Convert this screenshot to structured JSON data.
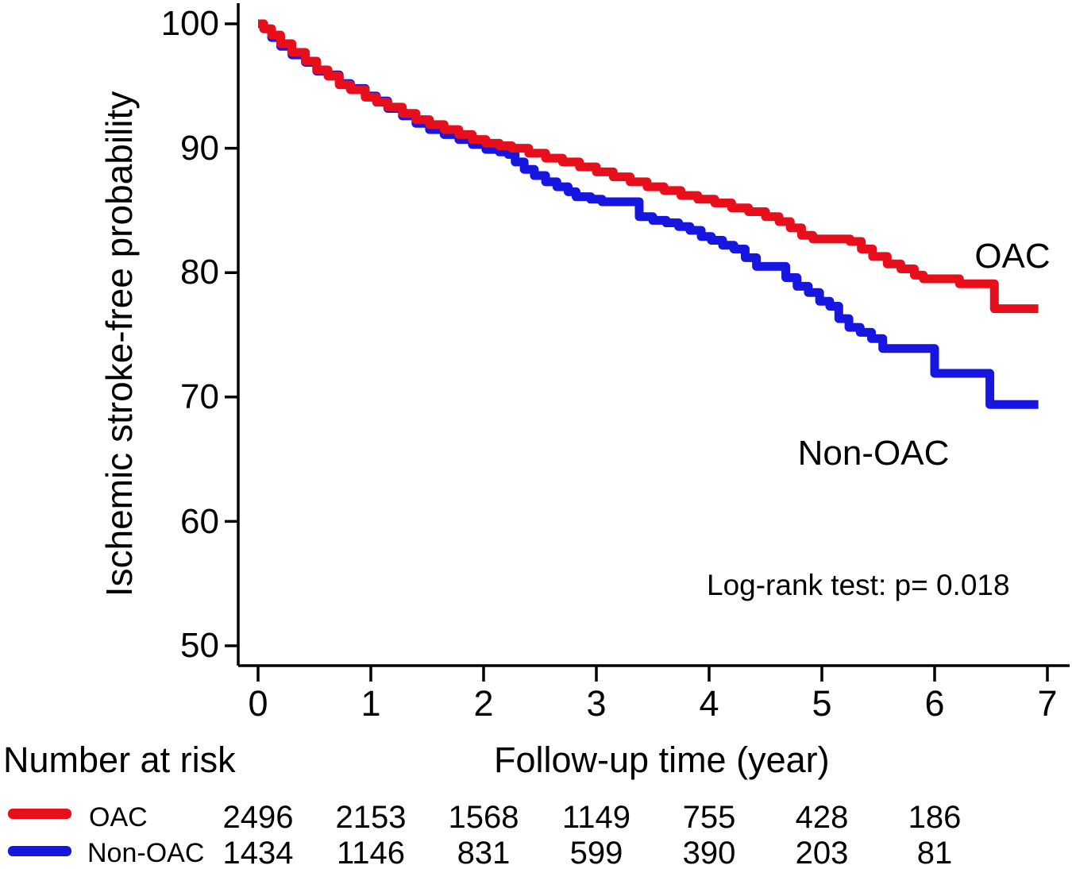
{
  "chart_data": {
    "type": "line",
    "subtype": "kaplan-meier-step",
    "title": "",
    "xlabel": "Follow-up time (year)",
    "ylabel": "Ischemic stroke-free probability",
    "xlim": [
      0,
      7
    ],
    "ylim": [
      50,
      100
    ],
    "grid": false,
    "legend_position": "bottom-left-risk-table",
    "x_ticks": [
      "0",
      "1",
      "2",
      "3",
      "4",
      "5",
      "6",
      "7"
    ],
    "y_ticks": [
      "100",
      "90",
      "80",
      "70",
      "60",
      "50"
    ],
    "annotation": "Log-rank test: p= 0.018",
    "axis_color": "#000000",
    "series": [
      {
        "name": "OAC",
        "color": "#e60f1b",
        "points": [
          [
            0,
            100
          ],
          [
            0.05,
            99.6
          ],
          [
            0.12,
            99.1
          ],
          [
            0.2,
            98.4
          ],
          [
            0.3,
            97.7
          ],
          [
            0.42,
            97.0
          ],
          [
            0.52,
            96.3
          ],
          [
            0.62,
            95.8
          ],
          [
            0.72,
            95.1
          ],
          [
            0.82,
            94.7
          ],
          [
            0.95,
            94.1
          ],
          [
            1.05,
            93.7
          ],
          [
            1.15,
            93.3
          ],
          [
            1.28,
            92.8
          ],
          [
            1.4,
            92.3
          ],
          [
            1.52,
            91.9
          ],
          [
            1.65,
            91.5
          ],
          [
            1.78,
            91.1
          ],
          [
            1.9,
            90.7
          ],
          [
            2.02,
            90.4
          ],
          [
            2.14,
            90.2
          ],
          [
            2.25,
            90.0
          ],
          [
            2.4,
            89.6
          ],
          [
            2.55,
            89.2
          ],
          [
            2.7,
            88.9
          ],
          [
            2.85,
            88.5
          ],
          [
            3.0,
            88.1
          ],
          [
            3.15,
            87.7
          ],
          [
            3.3,
            87.3
          ],
          [
            3.45,
            86.9
          ],
          [
            3.6,
            86.6
          ],
          [
            3.75,
            86.2
          ],
          [
            3.9,
            85.9
          ],
          [
            4.05,
            85.6
          ],
          [
            4.2,
            85.2
          ],
          [
            4.35,
            84.9
          ],
          [
            4.5,
            84.5
          ],
          [
            4.62,
            84.1
          ],
          [
            4.72,
            83.6
          ],
          [
            4.82,
            83.0
          ],
          [
            4.92,
            82.7
          ],
          [
            5.25,
            82.5
          ],
          [
            5.35,
            81.9
          ],
          [
            5.45,
            81.3
          ],
          [
            5.58,
            80.7
          ],
          [
            5.7,
            80.3
          ],
          [
            5.82,
            79.8
          ],
          [
            5.9,
            79.5
          ],
          [
            6.22,
            79.1
          ],
          [
            6.53,
            77.1
          ],
          [
            6.92,
            77.1
          ]
        ]
      },
      {
        "name": "Non-OAC",
        "color": "#1616e0",
        "points": [
          [
            0,
            100
          ],
          [
            0.05,
            99.6
          ],
          [
            0.12,
            98.9
          ],
          [
            0.2,
            98.2
          ],
          [
            0.3,
            97.5
          ],
          [
            0.42,
            96.9
          ],
          [
            0.52,
            96.2
          ],
          [
            0.62,
            95.9
          ],
          [
            0.72,
            95.2
          ],
          [
            0.82,
            94.8
          ],
          [
            0.95,
            94.2
          ],
          [
            1.05,
            93.8
          ],
          [
            1.15,
            93.2
          ],
          [
            1.28,
            92.6
          ],
          [
            1.4,
            92.0
          ],
          [
            1.52,
            91.5
          ],
          [
            1.65,
            91.1
          ],
          [
            1.78,
            90.7
          ],
          [
            1.9,
            90.3
          ],
          [
            2.02,
            89.9
          ],
          [
            2.14,
            89.7
          ],
          [
            2.22,
            89.5
          ],
          [
            2.28,
            88.9
          ],
          [
            2.36,
            88.3
          ],
          [
            2.45,
            87.8
          ],
          [
            2.55,
            87.3
          ],
          [
            2.65,
            86.9
          ],
          [
            2.75,
            86.5
          ],
          [
            2.82,
            86.1
          ],
          [
            2.95,
            85.9
          ],
          [
            3.05,
            85.7
          ],
          [
            3.38,
            84.5
          ],
          [
            3.5,
            84.2
          ],
          [
            3.62,
            84.0
          ],
          [
            3.73,
            83.7
          ],
          [
            3.83,
            83.4
          ],
          [
            3.93,
            82.9
          ],
          [
            4.02,
            82.6
          ],
          [
            4.12,
            82.2
          ],
          [
            4.22,
            81.9
          ],
          [
            4.32,
            81.2
          ],
          [
            4.42,
            80.5
          ],
          [
            4.68,
            79.6
          ],
          [
            4.78,
            78.9
          ],
          [
            4.88,
            78.4
          ],
          [
            4.98,
            77.7
          ],
          [
            5.07,
            77.3
          ],
          [
            5.15,
            76.3
          ],
          [
            5.24,
            75.6
          ],
          [
            5.34,
            75.2
          ],
          [
            5.44,
            74.7
          ],
          [
            5.54,
            73.9
          ],
          [
            6.0,
            71.9
          ],
          [
            6.49,
            69.4
          ],
          [
            6.92,
            69.4
          ]
        ]
      }
    ]
  },
  "risk_table": {
    "title": "Number at risk",
    "rows": [
      {
        "label": "OAC",
        "color": "#e60f1b",
        "values": [
          "2496",
          "2153",
          "1568",
          "1149",
          "755",
          "428",
          "186"
        ]
      },
      {
        "label": "Non-OAC",
        "color": "#1616e0",
        "values": [
          "1434",
          "1146",
          "831",
          "599",
          "390",
          "203",
          "81"
        ]
      }
    ]
  }
}
